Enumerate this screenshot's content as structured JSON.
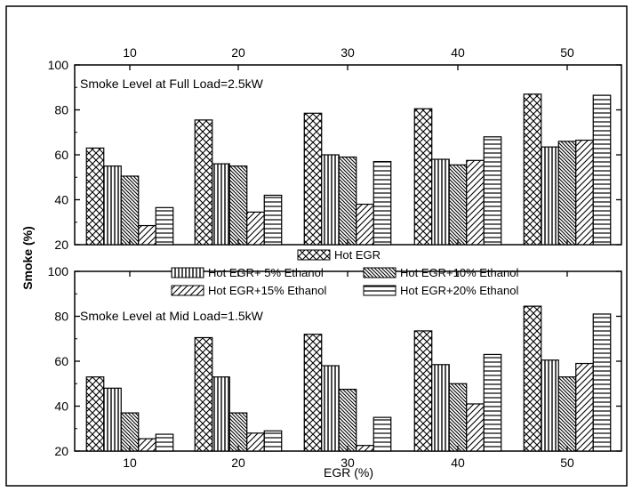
{
  "chart_data": [
    {
      "type": "bar",
      "panel": "top",
      "annotation": "Smoke Level at Full Load=2.5kW",
      "categories": [
        "10",
        "20",
        "30",
        "40",
        "50"
      ],
      "xaxis_position": "top",
      "ylim": [
        20,
        100
      ],
      "yticks": [
        20,
        40,
        60,
        80,
        100
      ],
      "series": [
        {
          "name": "Hot EGR",
          "values": [
            63,
            75.5,
            78.5,
            80.5,
            87
          ],
          "pattern": "crosshatch"
        },
        {
          "name": "Hot EGR+ 5% Ethanol",
          "values": [
            55,
            56,
            60,
            58,
            63.5
          ],
          "pattern": "vertical"
        },
        {
          "name": "Hot EGR+10% Ethanol",
          "values": [
            50.5,
            55,
            59,
            55.5,
            66
          ],
          "pattern": "diagonal-down"
        },
        {
          "name": "Hot EGR+15% Ethanol",
          "values": [
            28.5,
            34.5,
            38,
            57.5,
            66.5
          ],
          "pattern": "diagonal-up"
        },
        {
          "name": "Hot EGR+20% Ethanol",
          "values": [
            36.5,
            42,
            57,
            68,
            86.5
          ],
          "pattern": "horizontal"
        }
      ]
    },
    {
      "type": "bar",
      "panel": "bottom",
      "annotation": "Smoke Level at Mid Load=1.5kW",
      "categories": [
        "10",
        "20",
        "30",
        "40",
        "50"
      ],
      "xaxis_position": "bottom",
      "ylim": [
        20,
        100
      ],
      "yticks": [
        20,
        40,
        60,
        80,
        100
      ],
      "series": [
        {
          "name": "Hot EGR",
          "values": [
            53,
            70.5,
            72,
            73.5,
            84.5
          ],
          "pattern": "crosshatch"
        },
        {
          "name": "Hot EGR+ 5% Ethanol",
          "values": [
            48,
            53,
            58,
            58.5,
            60.5
          ],
          "pattern": "vertical"
        },
        {
          "name": "Hot EGR+10% Ethanol",
          "values": [
            37,
            37,
            47.5,
            50,
            53
          ],
          "pattern": "diagonal-down"
        },
        {
          "name": "Hot EGR+15% Ethanol",
          "values": [
            25.5,
            28,
            22.5,
            41,
            59
          ],
          "pattern": "diagonal-up"
        },
        {
          "name": "Hot EGR+20% Ethanol",
          "values": [
            27.5,
            29,
            35,
            63,
            81
          ],
          "pattern": "horizontal"
        }
      ]
    }
  ],
  "axes": {
    "xlabel": "EGR (%)",
    "ylabel": "Smoke (%)"
  },
  "legend": {
    "placement": "center, between panels",
    "entries": [
      "Hot EGR",
      "Hot EGR+ 5% Ethanol",
      "Hot EGR+10% Ethanol",
      "Hot EGR+15% Ethanol",
      "Hot EGR+20% Ethanol"
    ]
  },
  "colors": {
    "ink": "#000000",
    "background": "#ffffff"
  }
}
